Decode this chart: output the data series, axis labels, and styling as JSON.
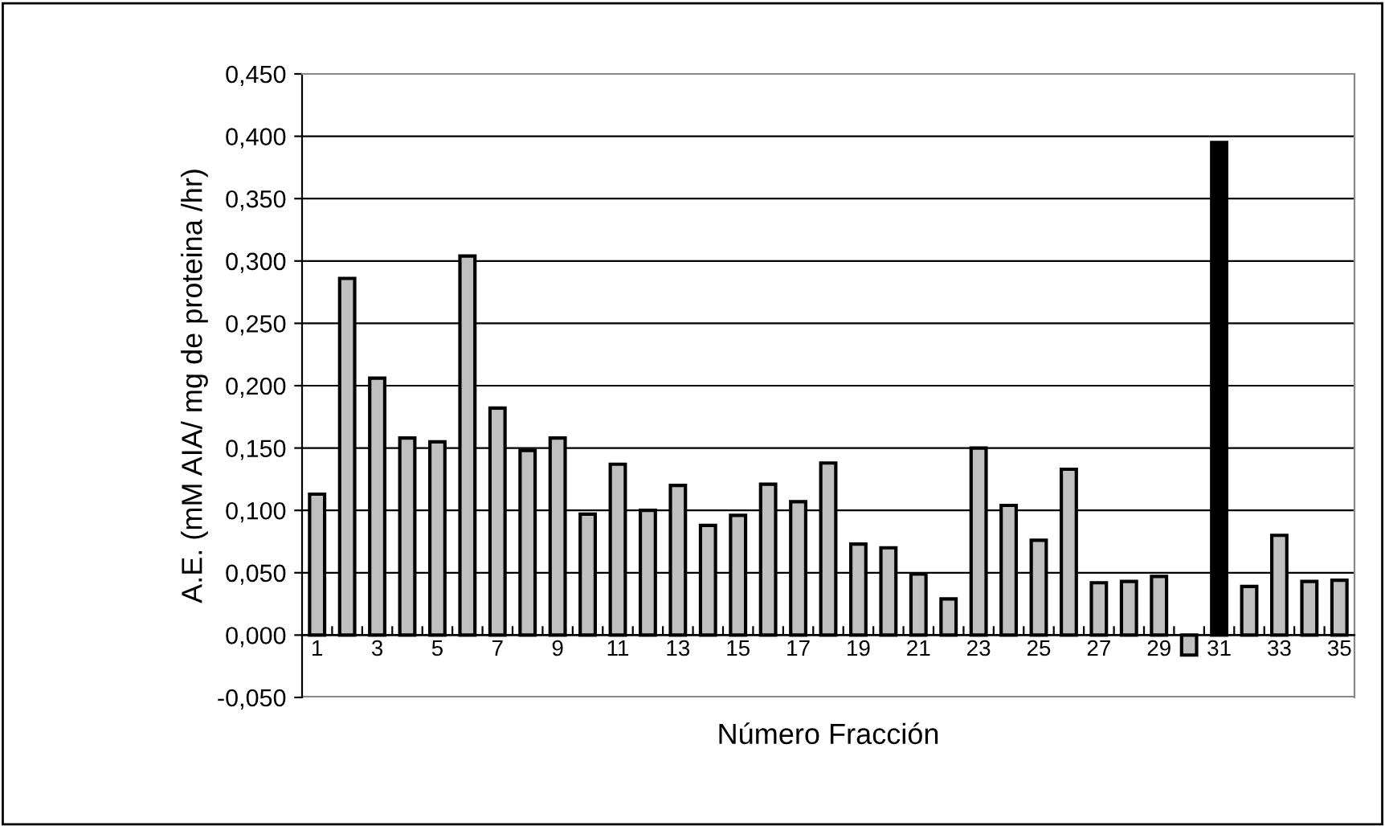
{
  "chart_data": {
    "type": "bar",
    "xlabel": "Número Fracción",
    "ylabel": "A.E. (mM AIA/ mg de proteina /hr)",
    "categories": [
      "1",
      null,
      "3",
      null,
      "5",
      null,
      "7",
      null,
      "9",
      null,
      "11",
      null,
      "13",
      null,
      "15",
      null,
      "17",
      null,
      "19",
      null,
      "21",
      null,
      "23",
      null,
      "25",
      null,
      "27",
      null,
      "29",
      null,
      "31",
      null,
      "33",
      null,
      "35"
    ],
    "values": [
      0.113,
      0.286,
      0.206,
      0.158,
      0.155,
      0.304,
      0.182,
      0.148,
      0.158,
      0.097,
      0.137,
      0.1,
      0.12,
      0.088,
      0.096,
      0.121,
      0.107,
      0.138,
      0.073,
      0.07,
      0.049,
      0.029,
      0.15,
      0.104,
      0.076,
      0.133,
      0.042,
      0.043,
      0.047,
      -0.016,
      0.395,
      0.039,
      0.08,
      0.043,
      0.044
    ],
    "colors": [
      "#c0c0c0",
      "#c0c0c0",
      "#c0c0c0",
      "#c0c0c0",
      "#c0c0c0",
      "#c0c0c0",
      "#c0c0c0",
      "#c0c0c0",
      "#c0c0c0",
      "#c0c0c0",
      "#c0c0c0",
      "#c0c0c0",
      "#c0c0c0",
      "#c0c0c0",
      "#c0c0c0",
      "#c0c0c0",
      "#c0c0c0",
      "#c0c0c0",
      "#c0c0c0",
      "#c0c0c0",
      "#c0c0c0",
      "#c0c0c0",
      "#c0c0c0",
      "#c0c0c0",
      "#c0c0c0",
      "#c0c0c0",
      "#c0c0c0",
      "#c0c0c0",
      "#c0c0c0",
      "#c0c0c0",
      "#000000",
      "#c0c0c0",
      "#c0c0c0",
      "#c0c0c0",
      "#c0c0c0"
    ],
    "ylim": [
      -0.05,
      0.45
    ],
    "yticks": [
      {
        "value": -0.05,
        "label": "-0,050"
      },
      {
        "value": 0,
        "label": "0,000"
      },
      {
        "value": 0.05,
        "label": "0,050"
      },
      {
        "value": 0.1,
        "label": "0,100"
      },
      {
        "value": 0.15,
        "label": "0,150"
      },
      {
        "value": 0.2,
        "label": "0,200"
      },
      {
        "value": 0.25,
        "label": "0,250"
      },
      {
        "value": 0.3,
        "label": "0,300"
      },
      {
        "value": 0.35,
        "label": "0,350"
      },
      {
        "value": 0.4,
        "label": "0,400"
      },
      {
        "value": 0.45,
        "label": "0,450"
      }
    ],
    "grid": "y"
  }
}
